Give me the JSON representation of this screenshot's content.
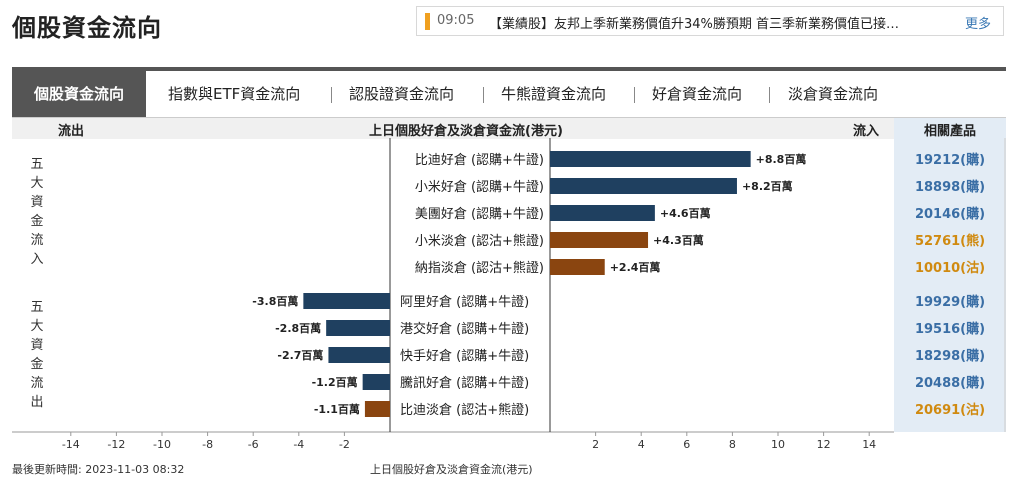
{
  "page": {
    "title": "個股資金流向"
  },
  "news": {
    "time": "09:05",
    "text": "【業績股】友邦上季新業務價值升34%勝預期 首三季新業務價值已接…",
    "more": "更多"
  },
  "tabs": [
    "個股資金流向",
    "指數與ETF資金流向",
    "認股證資金流向",
    "牛熊證資金流向",
    "好倉資金流向",
    "淡倉資金流向"
  ],
  "header": {
    "outflow": "流出",
    "title": "上日個股好倉及淡倉資金流(港元)",
    "inflow": "流入",
    "products": "相關產品"
  },
  "side_labels": {
    "top": [
      "五",
      "大",
      "資",
      "金",
      "流",
      "入"
    ],
    "bottom": [
      "五",
      "大",
      "資",
      "金",
      "流",
      "出"
    ]
  },
  "colors": {
    "bull": "#1f4060",
    "bear": "#8a4510",
    "bull_link": "#3a6ea5",
    "bear_link": "#d08a10"
  },
  "footer": {
    "updated": "最後更新時間: 2023-11-03 08:32",
    "axis_title": "上日個股好倉及淡倉資金流(港元)"
  },
  "chart_data": {
    "type": "bar",
    "orientation": "horizontal",
    "title": "上日個股好倉及淡倉資金流(港元)",
    "xlabel": "上日個股好倉及淡倉資金流(港元)",
    "xlim": [
      -16,
      16
    ],
    "xticks": [
      "-14",
      "-12",
      "-10",
      "-8",
      "-6",
      "-4",
      "-2",
      "2",
      "4",
      "6",
      "8",
      "10",
      "12",
      "14"
    ],
    "unit": "百萬",
    "inflow": [
      {
        "name": "比迪好倉 (認購+牛證)",
        "value": 8.8,
        "label": "+8.8百萬",
        "kind": "bull",
        "product": "19212(購)"
      },
      {
        "name": "小米好倉 (認購+牛證)",
        "value": 8.2,
        "label": "+8.2百萬",
        "kind": "bull",
        "product": "18898(購)"
      },
      {
        "name": "美團好倉 (認購+牛證)",
        "value": 4.6,
        "label": "+4.6百萬",
        "kind": "bull",
        "product": "20146(購)"
      },
      {
        "name": "小米淡倉 (認沽+熊證)",
        "value": 4.3,
        "label": "+4.3百萬",
        "kind": "bear",
        "product": "52761(熊)"
      },
      {
        "name": "納指淡倉 (認沽+熊證)",
        "value": 2.4,
        "label": "+2.4百萬",
        "kind": "bear",
        "product": "10010(沽)"
      }
    ],
    "outflow": [
      {
        "name": "阿里好倉 (認購+牛證)",
        "value": -3.8,
        "label": "-3.8百萬",
        "kind": "bull",
        "product": "19929(購)"
      },
      {
        "name": "港交好倉 (認購+牛證)",
        "value": -2.8,
        "label": "-2.8百萬",
        "kind": "bull",
        "product": "19516(購)"
      },
      {
        "name": "快手好倉 (認購+牛證)",
        "value": -2.7,
        "label": "-2.7百萬",
        "kind": "bull",
        "product": "18298(購)"
      },
      {
        "name": "騰訊好倉 (認購+牛證)",
        "value": -1.2,
        "label": "-1.2百萬",
        "kind": "bull",
        "product": "20488(購)"
      },
      {
        "name": "比迪淡倉 (認沽+熊證)",
        "value": -1.1,
        "label": "-1.1百萬",
        "kind": "bear",
        "product": "20691(沽)"
      }
    ]
  }
}
